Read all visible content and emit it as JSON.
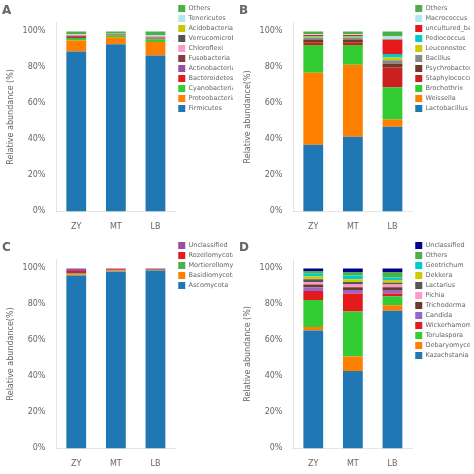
{
  "chart_data": [
    {
      "type": "bar",
      "stacked": true,
      "title": "A",
      "ylabel": "Relative abundance (%)",
      "categories": [
        "ZY",
        "MT",
        "LB"
      ],
      "ylim": [
        0,
        105
      ],
      "yticks": [
        {
          "value": 0,
          "label": "0%"
        },
        {
          "value": 20,
          "label": "20%"
        },
        {
          "value": 40,
          "label": "40%"
        },
        {
          "value": 60,
          "label": "60%"
        },
        {
          "value": 80,
          "label": "80%"
        },
        {
          "value": 100,
          "label": "100%"
        }
      ],
      "grid": false,
      "legend": "right",
      "series": [
        {
          "name": "Others",
          "color": "#4daf4a",
          "values": [
            1.5,
            1.0,
            2.0
          ]
        },
        {
          "name": "Tenericutes",
          "color": "#aee8e8",
          "values": [
            0.3,
            0.2,
            0.5
          ]
        },
        {
          "name": "Acidobacteria",
          "color": "#c8c800",
          "values": [
            0.2,
            0.1,
            0.3
          ]
        },
        {
          "name": "Verrucomicrobia",
          "color": "#555555",
          "values": [
            0.2,
            0.1,
            0.2
          ]
        },
        {
          "name": "Chloroflexi",
          "color": "#ff99cc",
          "values": [
            0.2,
            0.1,
            0.2
          ]
        },
        {
          "name": "Fusobacteria",
          "color": "#8b3a3a",
          "values": [
            0.2,
            0.1,
            0.2
          ]
        },
        {
          "name": "Actinobacteria",
          "color": "#984ea3",
          "values": [
            0.5,
            0.3,
            0.5
          ]
        },
        {
          "name": "Bacteroidetes",
          "color": "#e41a1c",
          "values": [
            0.5,
            0.3,
            0.5
          ]
        },
        {
          "name": "Cyanobacteria",
          "color": "#33cc33",
          "values": [
            1.5,
            1.0,
            1.5
          ]
        },
        {
          "name": "Proteobacteria",
          "color": "#ff7f00",
          "values": [
            6.0,
            4.0,
            7.5
          ]
        },
        {
          "name": "Firmicutes",
          "color": "#1f78b4",
          "values": [
            88.9,
            92.8,
            86.6
          ]
        }
      ]
    },
    {
      "type": "bar",
      "stacked": true,
      "title": "B",
      "ylabel": "Relative abundance(%)",
      "categories": [
        "ZY",
        "MT",
        "LB"
      ],
      "ylim": [
        0,
        105
      ],
      "yticks": [
        {
          "value": 0,
          "label": "0%"
        },
        {
          "value": 20,
          "label": "20%"
        },
        {
          "value": 40,
          "label": "40%"
        },
        {
          "value": 60,
          "label": "60%"
        },
        {
          "value": 80,
          "label": "80%"
        },
        {
          "value": 100,
          "label": "100%"
        }
      ],
      "grid": false,
      "legend": "right",
      "series": [
        {
          "name": "Others",
          "color": "#4daf4a",
          "values": [
            1.5,
            1.5,
            2.5
          ]
        },
        {
          "name": "Macrococcus",
          "color": "#aee8e8",
          "values": [
            0.5,
            0.5,
            2.0
          ]
        },
        {
          "name": "uncultured_bacterium",
          "color": "#e41a1c",
          "values": [
            0.5,
            0.5,
            8.0
          ]
        },
        {
          "name": "Pediococcus",
          "color": "#00cccc",
          "values": [
            0.5,
            0.5,
            2.0
          ]
        },
        {
          "name": "Leuconostoc",
          "color": "#cccc00",
          "values": [
            0.5,
            0.5,
            1.5
          ]
        },
        {
          "name": "Bacillus",
          "color": "#888888",
          "values": [
            1.0,
            1.0,
            2.0
          ]
        },
        {
          "name": "Psychrobacter",
          "color": "#6b3a2a",
          "values": [
            1.5,
            1.5,
            2.0
          ]
        },
        {
          "name": "Staphylococcus",
          "color": "#cc2020",
          "values": [
            1.5,
            1.5,
            11.0
          ]
        },
        {
          "name": "Brochothrix",
          "color": "#33cc33",
          "values": [
            15.5,
            11.0,
            18.0
          ]
        },
        {
          "name": "Weissella",
          "color": "#ff7f00",
          "values": [
            40.0,
            40.0,
            4.0
          ]
        },
        {
          "name": "Lactobacillus",
          "color": "#1f78b4",
          "values": [
            37.0,
            41.5,
            47.0
          ]
        }
      ]
    },
    {
      "type": "bar",
      "stacked": true,
      "title": "C",
      "ylabel": "Relative abundance(%)",
      "categories": [
        "ZY",
        "MT",
        "LB"
      ],
      "ylim": [
        0,
        105
      ],
      "yticks": [
        {
          "value": 0,
          "label": "0%"
        },
        {
          "value": 20,
          "label": "20%"
        },
        {
          "value": 40,
          "label": "40%"
        },
        {
          "value": 60,
          "label": "60%"
        },
        {
          "value": 80,
          "label": "80%"
        },
        {
          "value": 100,
          "label": "100%"
        }
      ],
      "grid": false,
      "legend": "right",
      "series": [
        {
          "name": "Unclassified",
          "color": "#984ea3",
          "values": [
            1.5,
            0.5,
            0.4
          ]
        },
        {
          "name": "Rozellomycota",
          "color": "#e41a1c",
          "values": [
            1.2,
            0.5,
            0.3
          ]
        },
        {
          "name": "Mortierellomycota",
          "color": "#4daf4a",
          "values": [
            0.5,
            0.3,
            0.2
          ]
        },
        {
          "name": "Basidiomycota",
          "color": "#ff7f00",
          "values": [
            0.8,
            0.5,
            0.3
          ]
        },
        {
          "name": "Ascomycota",
          "color": "#1f78b4",
          "values": [
            96.0,
            98.2,
            98.8
          ]
        }
      ]
    },
    {
      "type": "bar",
      "stacked": true,
      "title": "D",
      "ylabel": "Relative abundance (%)",
      "categories": [
        "ZY",
        "MT",
        "LB"
      ],
      "ylim": [
        0,
        105
      ],
      "yticks": [
        {
          "value": 0,
          "label": "0%"
        },
        {
          "value": 20,
          "label": "20%"
        },
        {
          "value": 40,
          "label": "40%"
        },
        {
          "value": 60,
          "label": "60%"
        },
        {
          "value": 80,
          "label": "80%"
        },
        {
          "value": 100,
          "label": "100%"
        }
      ],
      "grid": false,
      "legend": "right",
      "series": [
        {
          "name": "Unclassified",
          "color": "#00008b",
          "values": [
            1.5,
            2.0,
            2.0
          ]
        },
        {
          "name": "Others",
          "color": "#4daf4a",
          "values": [
            1.5,
            2.0,
            3.0
          ]
        },
        {
          "name": "Geotrichum",
          "color": "#00cccc",
          "values": [
            1.5,
            2.0,
            1.5
          ]
        },
        {
          "name": "Dekkera",
          "color": "#cccc00",
          "values": [
            1.5,
            1.5,
            1.5
          ]
        },
        {
          "name": "Lactarius",
          "color": "#555555",
          "values": [
            1.5,
            1.5,
            1.0
          ]
        },
        {
          "name": "Pichia",
          "color": "#ff99cc",
          "values": [
            1.5,
            1.5,
            1.5
          ]
        },
        {
          "name": "Trichoderma",
          "color": "#6b3a2a",
          "values": [
            1.5,
            1.5,
            1.5
          ]
        },
        {
          "name": "Candida",
          "color": "#9966cc",
          "values": [
            2.0,
            2.0,
            2.0
          ]
        },
        {
          "name": "Wickerhamomyces",
          "color": "#e41a1c",
          "values": [
            5.0,
            10.0,
            1.5
          ]
        },
        {
          "name": "Torulaspora",
          "color": "#33cc33",
          "values": [
            15.0,
            25.0,
            5.0
          ]
        },
        {
          "name": "Debaryomyces",
          "color": "#ff7f00",
          "values": [
            2.0,
            8.0,
            3.0
          ]
        },
        {
          "name": "Kazachstania",
          "color": "#1f78b4",
          "values": [
            65.5,
            43.0,
            76.5
          ]
        }
      ]
    }
  ]
}
